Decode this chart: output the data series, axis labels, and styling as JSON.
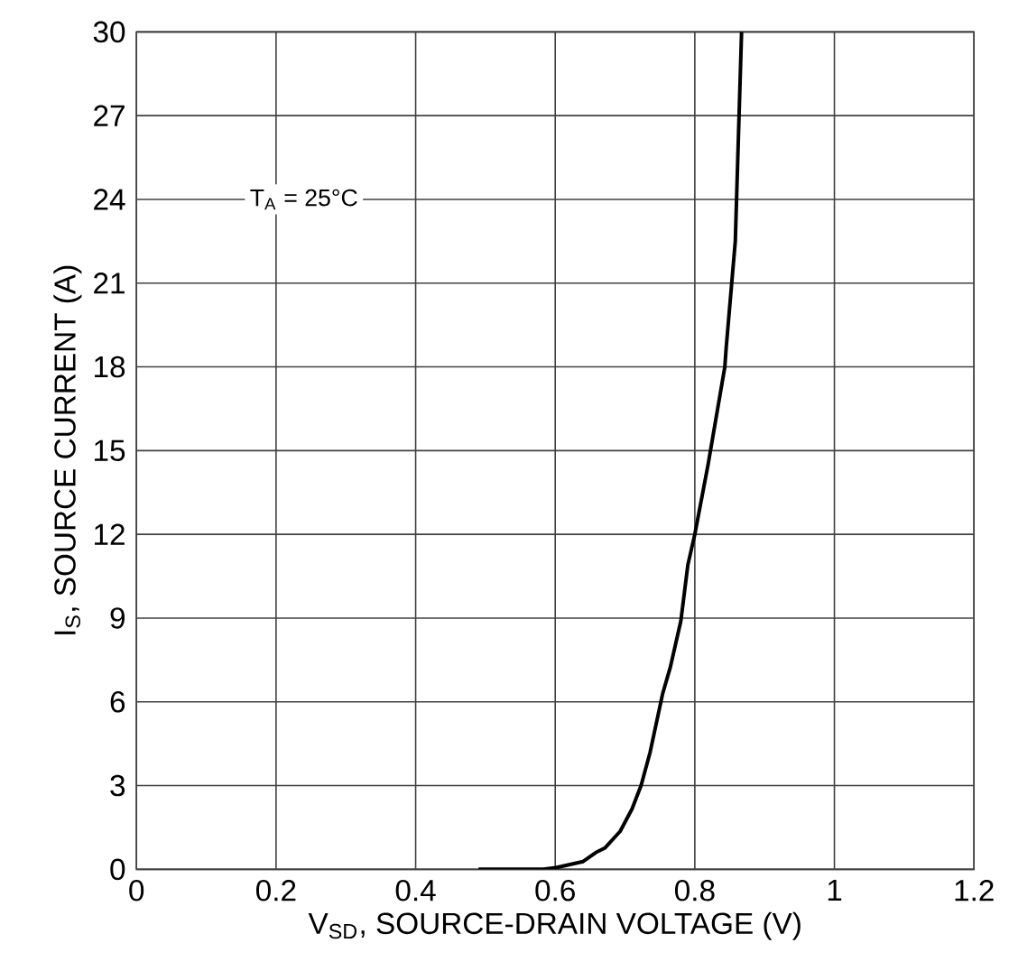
{
  "chart_data": {
    "type": "line",
    "xlabel": "V$_{SD}$, SOURCE-DRAIN VOLTAGE (V)",
    "ylabel": "I$_{S}$, SOURCE CURRENT (A)",
    "annotations": [
      "T$_{A}$ = 25°C"
    ],
    "xlim": [
      0,
      1.2
    ],
    "ylim": [
      0,
      30
    ],
    "xticks": [
      0,
      0.2,
      0.4,
      0.6,
      0.8,
      1,
      1.2
    ],
    "yticks": [
      0,
      3,
      6,
      9,
      12,
      15,
      18,
      21,
      24,
      27,
      30
    ],
    "grid": true,
    "marker": "none",
    "line_style": "solid",
    "series": [
      {
        "color": "#000000",
        "x": [
          0.49,
          0.583,
          0.601,
          0.64,
          0.658,
          0.671,
          0.693,
          0.71,
          0.723,
          0.736,
          0.754,
          0.765,
          0.78,
          0.79,
          0.8,
          0.819,
          0.843,
          0.845,
          0.858,
          0.867
        ],
        "values": [
          0,
          0,
          0.06,
          0.28,
          0.6,
          0.76,
          1.36,
          2.16,
          3.0,
          4.2,
          6.3,
          7.25,
          8.9,
          10.9,
          12.0,
          14.5,
          18.0,
          18.7,
          22.5,
          30
        ]
      }
    ]
  }
}
